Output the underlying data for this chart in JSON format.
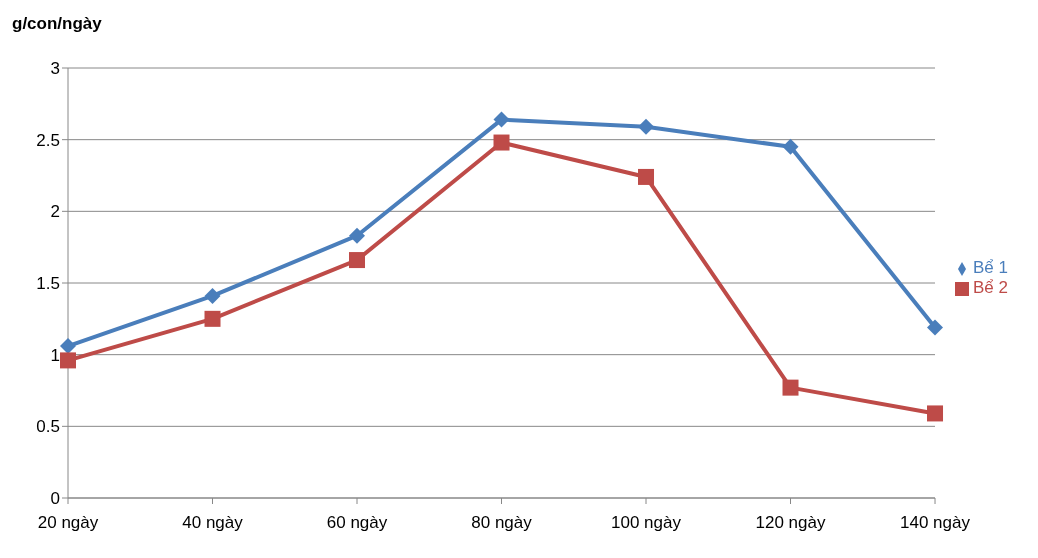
{
  "chart_data": {
    "type": "line",
    "ylabel": "g/con/ngày",
    "categories": [
      "20 ngày",
      "40 ngày",
      "60 ngày",
      "80 ngày",
      "100 ngày",
      "120 ngày",
      "140 ngày"
    ],
    "series": [
      {
        "name": "Bể 1",
        "color": "#4a7ebb",
        "marker": "diamond",
        "values": [
          1.06,
          1.41,
          1.83,
          2.64,
          2.59,
          2.45,
          1.19
        ]
      },
      {
        "name": "Bể 2",
        "color": "#be4b48",
        "marker": "square",
        "values": [
          0.96,
          1.25,
          1.66,
          2.48,
          2.24,
          0.77,
          0.59
        ]
      }
    ],
    "ylim": [
      0,
      3
    ],
    "yticks": [
      0,
      0.5,
      1,
      1.5,
      2,
      2.5,
      3
    ],
    "grid": "y",
    "legend": "right"
  }
}
